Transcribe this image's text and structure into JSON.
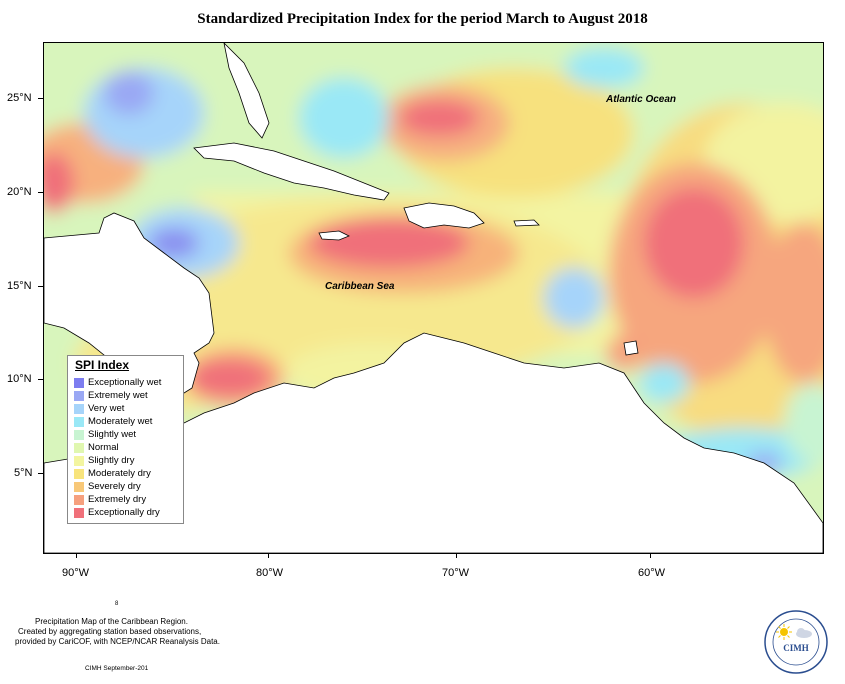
{
  "title": "Standardized Precipitation Index for the period March to August 2018",
  "lat_labels": [
    "25°N",
    "20°N",
    "15°N",
    "10°N",
    "5°N"
  ],
  "lon_labels": [
    "90°W",
    "80°W",
    "70°W",
    "60°W"
  ],
  "ocean_labels": {
    "atlantic": "Atlantic Ocean",
    "caribbean": "Caribbean Sea"
  },
  "legend": {
    "title": "SPI Index",
    "items": [
      {
        "label": "Exceptionally wet",
        "color": "#7d7df0"
      },
      {
        "label": "Extremely wet",
        "color": "#9aa8f4"
      },
      {
        "label": "Very wet",
        "color": "#a6d4fa"
      },
      {
        "label": "Moderately wet",
        "color": "#9ae8f6"
      },
      {
        "label": "Slightly wet",
        "color": "#c8f4d2"
      },
      {
        "label": "Normal",
        "color": "#e0f7b0"
      },
      {
        "label": "Slightly dry",
        "color": "#f3f5a0"
      },
      {
        "label": "Moderately dry",
        "color": "#f8e47c"
      },
      {
        "label": "Severely dry",
        "color": "#f8c878"
      },
      {
        "label": "Extremely dry",
        "color": "#f6a07e"
      },
      {
        "label": "Exceptionally dry",
        "color": "#f0707a"
      }
    ]
  },
  "footer": {
    "line1": "Precipitation Map of the Caribbean Region.",
    "line2": "Created by aggregating station based observations,",
    "line3": "provided by CariCOF, with NCEP/NCAR Reanalysis Data.",
    "credit": "CIMH September-201",
    "page_mark": "8"
  },
  "logo": {
    "acronym": "CIMH"
  }
}
